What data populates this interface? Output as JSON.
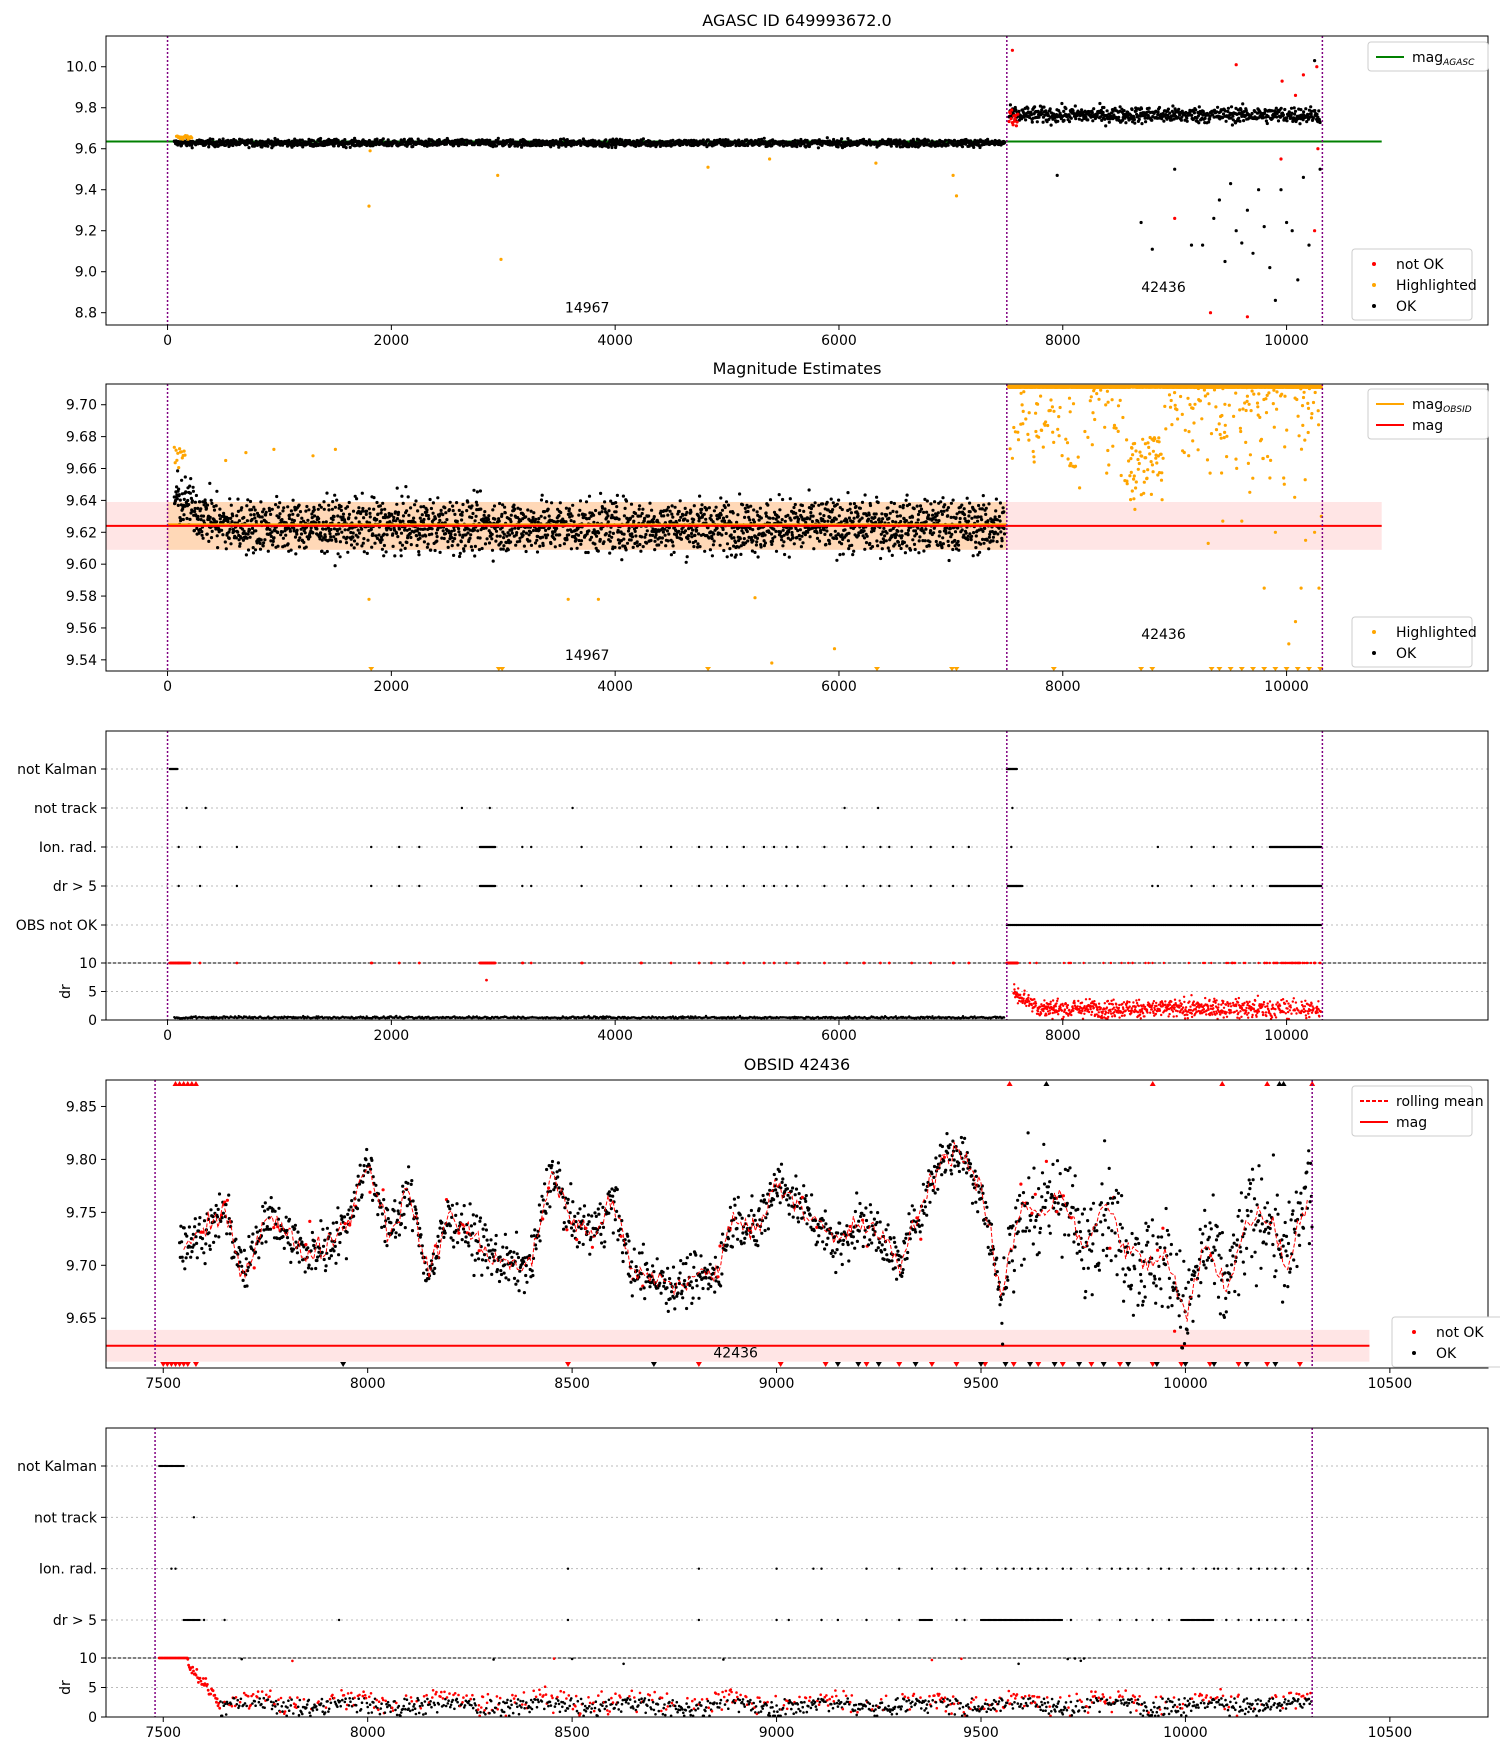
{
  "chart_data": [
    {
      "type": "scatter",
      "title": "AGASC ID 649993672.0",
      "xlim": [
        -550,
        11800
      ],
      "ylim": [
        8.74,
        10.15
      ],
      "x_ticks": [
        0,
        2000,
        4000,
        6000,
        8000,
        10000
      ],
      "y_ticks": [
        8.8,
        9.0,
        9.2,
        9.4,
        9.6,
        9.8,
        10.0
      ],
      "obsid_boundaries": [
        0,
        7500,
        10320
      ],
      "obsid_labels": [
        {
          "text": "14967",
          "x": 3750,
          "y": 8.8
        },
        {
          "text": "42436",
          "x": 8900,
          "y": 8.9
        }
      ],
      "lines": [
        {
          "name": "mag$_{AGASC}$",
          "legend": "mag",
          "legend_sub": "AGASC",
          "color": "#008000",
          "y": 9.635,
          "x": [
            -550,
            10850
          ]
        }
      ],
      "series": [
        {
          "name": "not OK",
          "color": "#ff0000"
        },
        {
          "name": "Highlighted",
          "color": "#ffa500"
        },
        {
          "name": "OK",
          "color": "#000000"
        }
      ],
      "segments": [
        {
          "series": "OK",
          "x_start": 60,
          "x_end": 7480,
          "mean": 9.628,
          "spread": 0.018
        },
        {
          "series": "OK",
          "x_start": 7520,
          "x_end": 10300,
          "mean": 9.765,
          "spread": 0.04
        }
      ],
      "outliers": {
        "Highlighted": [
          [
            1800,
            9.32
          ],
          [
            2950,
            9.47
          ],
          [
            2980,
            9.06
          ],
          [
            4830,
            9.51
          ],
          [
            5380,
            9.55
          ],
          [
            6330,
            9.53
          ],
          [
            7020,
            9.47
          ],
          [
            7050,
            9.37
          ],
          [
            1810,
            9.59
          ]
        ],
        "not OK": [
          [
            7550,
            10.08
          ],
          [
            9000,
            9.26
          ],
          [
            9320,
            8.8
          ],
          [
            9550,
            10.01
          ],
          [
            9650,
            8.78
          ],
          [
            9950,
            9.55
          ],
          [
            9960,
            9.93
          ],
          [
            10080,
            9.86
          ],
          [
            10150,
            9.96
          ],
          [
            10250,
            9.2
          ],
          [
            10270,
            10.0
          ],
          [
            10280,
            9.6
          ]
        ],
        "OK": [
          [
            7950,
            9.47
          ],
          [
            8700,
            9.24
          ],
          [
            8800,
            9.11
          ],
          [
            9000,
            9.5
          ],
          [
            9150,
            9.13
          ],
          [
            9250,
            9.13
          ],
          [
            9350,
            9.26
          ],
          [
            9400,
            9.35
          ],
          [
            9450,
            9.05
          ],
          [
            9500,
            9.43
          ],
          [
            9550,
            9.2
          ],
          [
            9600,
            9.14
          ],
          [
            9650,
            9.3
          ],
          [
            9700,
            9.09
          ],
          [
            9750,
            9.4
          ],
          [
            9800,
            9.22
          ],
          [
            9850,
            9.02
          ],
          [
            9900,
            8.86
          ],
          [
            9950,
            9.4
          ],
          [
            10000,
            9.24
          ],
          [
            10050,
            9.2
          ],
          [
            10100,
            8.96
          ],
          [
            10150,
            9.46
          ],
          [
            10200,
            9.13
          ],
          [
            10250,
            10.03
          ],
          [
            10300,
            9.5
          ]
        ]
      }
    },
    {
      "type": "scatter",
      "title": "Magnitude Estimates",
      "xlim": [
        -550,
        11800
      ],
      "ylim": [
        9.533,
        9.713
      ],
      "x_ticks": [
        0,
        2000,
        4000,
        6000,
        8000,
        10000
      ],
      "y_ticks": [
        9.54,
        9.56,
        9.58,
        9.6,
        9.62,
        9.64,
        9.66,
        9.68,
        9.7
      ],
      "obsid_boundaries": [
        0,
        7500,
        10320
      ],
      "obsid_labels": [
        {
          "text": "14967",
          "x": 3750,
          "y": 9.54
        },
        {
          "text": "42436",
          "x": 8900,
          "y": 9.553
        }
      ],
      "band": {
        "y_low": 9.609,
        "y_high": 9.639,
        "color": "#ff0000",
        "alpha": 0.1
      },
      "obsid_band": {
        "x_start": 0,
        "x_end": 7500,
        "y_low": 9.609,
        "y_high": 9.639,
        "color": "#ffa500",
        "alpha": 0.2
      },
      "lines": [
        {
          "name": "mag$_{OBSID}$",
          "legend": "mag",
          "legend_sub": "OBSID",
          "color": "#ffa500",
          "segments": [
            {
              "x_start": 0,
              "x_end": 7500,
              "y": 9.624
            },
            {
              "x_start": 7500,
              "x_end": 10320,
              "y": 9.711
            }
          ]
        },
        {
          "name": "mag",
          "legend": "mag",
          "color": "#ff0000",
          "y": 9.624,
          "x": [
            -550,
            10850
          ]
        }
      ],
      "series": [
        {
          "name": "Highlighted",
          "color": "#ffa500"
        },
        {
          "name": "OK",
          "color": "#000000"
        }
      ],
      "segments": [
        {
          "series": "OK",
          "x_start": 60,
          "x_end": 7480,
          "mean": 9.624,
          "spread": 0.014
        }
      ]
    },
    {
      "type": "scatter",
      "title": "",
      "xlim": [
        -550,
        11800
      ],
      "categories": [
        "not Kalman",
        "not track",
        "Ion. rad.",
        "dr > 5",
        "OBS not OK"
      ],
      "dr_panel": {
        "ylabel": "dr",
        "ylim": [
          0,
          10
        ],
        "y_ticks": [
          0,
          5,
          10
        ]
      },
      "x_ticks": [
        0,
        2000,
        4000,
        6000,
        8000,
        10000
      ],
      "obsid_boundaries": [
        0,
        7500,
        10320
      ],
      "flags": {
        "not Kalman": [
          [
            20,
            90
          ],
          [
            7500,
            7590
          ]
        ],
        "not track": [
          [
            170
          ],
          [
            340
          ],
          [
            2630
          ],
          [
            2880
          ],
          [
            3620
          ],
          [
            6050
          ],
          [
            6350
          ],
          [
            7550
          ]
        ],
        "Ion. rad.": [
          [
            100
          ],
          [
            290
          ],
          [
            620
          ],
          [
            1820
          ],
          [
            2070
          ],
          [
            2250
          ],
          [
            2790,
            2930
          ],
          [
            3170
          ],
          [
            3250
          ],
          [
            3700
          ],
          [
            4230
          ],
          [
            4500
          ],
          [
            4750
          ],
          [
            4860
          ],
          [
            5000
          ],
          [
            5150
          ],
          [
            5330
          ],
          [
            5420
          ],
          [
            5530
          ],
          [
            5630
          ],
          [
            5870
          ],
          [
            6070
          ],
          [
            6220
          ],
          [
            6370
          ],
          [
            6450
          ],
          [
            6650
          ],
          [
            6820
          ],
          [
            7020
          ],
          [
            7160
          ],
          [
            7540
          ],
          [
            8850
          ],
          [
            9150
          ],
          [
            9350
          ],
          [
            9500
          ],
          [
            9700
          ],
          [
            9850,
            10310
          ]
        ],
        "dr > 5": [
          [
            100
          ],
          [
            290
          ],
          [
            620
          ],
          [
            1820
          ],
          [
            2070
          ],
          [
            2250
          ],
          [
            2790,
            2930
          ],
          [
            3170
          ],
          [
            3250
          ],
          [
            3700
          ],
          [
            4230
          ],
          [
            4500
          ],
          [
            4750
          ],
          [
            4860
          ],
          [
            5000
          ],
          [
            5150
          ],
          [
            5330
          ],
          [
            5420
          ],
          [
            5530
          ],
          [
            5630
          ],
          [
            5870
          ],
          [
            6070
          ],
          [
            6220
          ],
          [
            6370
          ],
          [
            6450
          ],
          [
            6650
          ],
          [
            6820
          ],
          [
            7020
          ],
          [
            7160
          ],
          [
            7510,
            7640
          ],
          [
            8800
          ],
          [
            8850
          ],
          [
            9150
          ],
          [
            9350
          ],
          [
            9500
          ],
          [
            9600
          ],
          [
            9700
          ],
          [
            9850,
            10310
          ]
        ],
        "OBS not OK": [
          [
            7500,
            10310
          ]
        ]
      }
    },
    {
      "type": "scatter",
      "title": "OBSID 42436",
      "xlim": [
        7360,
        10740
      ],
      "ylim": [
        9.603,
        9.875
      ],
      "x_ticks": [
        7500,
        8000,
        8500,
        9000,
        9500,
        10000,
        10500
      ],
      "y_ticks": [
        9.65,
        9.7,
        9.75,
        9.8,
        9.85
      ],
      "obsid_boundaries": [
        7480,
        10310
      ],
      "obsid_labels": [
        {
          "text": "42436",
          "x": 8900,
          "y": 9.613
        }
      ],
      "band": {
        "y_low": 9.609,
        "y_high": 9.639,
        "color": "#ff0000",
        "alpha": 0.1
      },
      "lines": [
        {
          "name": "rolling mean",
          "color": "#ff0000",
          "dashed": true
        },
        {
          "name": "mag",
          "color": "#ff0000",
          "y": 9.624,
          "x": [
            7360,
            10450
          ]
        }
      ],
      "series": [
        {
          "name": "not OK",
          "color": "#ff0000"
        },
        {
          "name": "OK",
          "color": "#000000"
        }
      ],
      "x": [
        7550,
        7600,
        7650,
        7700,
        7750,
        7800,
        7850,
        7900,
        7950,
        8000,
        8050,
        8100,
        8150,
        8200,
        8250,
        8300,
        8350,
        8400,
        8450,
        8500,
        8550,
        8600,
        8650,
        8700,
        8750,
        8800,
        8850,
        8900,
        8950,
        9000,
        9050,
        9100,
        9150,
        9200,
        9250,
        9300,
        9350,
        9400,
        9450,
        9500,
        9550,
        9600,
        9650,
        9700,
        9750,
        9800,
        9850,
        9900,
        9950,
        10000,
        10050,
        10100,
        10150,
        10200,
        10250,
        10300
      ],
      "rolling_mean": [
        9.72,
        9.73,
        9.75,
        9.69,
        9.75,
        9.73,
        9.71,
        9.72,
        9.74,
        9.8,
        9.73,
        9.77,
        9.69,
        9.75,
        9.73,
        9.71,
        9.7,
        9.7,
        9.79,
        9.74,
        9.73,
        9.76,
        9.69,
        9.69,
        9.68,
        9.69,
        9.69,
        9.75,
        9.73,
        9.78,
        9.76,
        9.74,
        9.72,
        9.74,
        9.73,
        9.7,
        9.75,
        9.8,
        9.81,
        9.77,
        9.67,
        9.76,
        9.75,
        9.77,
        9.71,
        9.76,
        9.72,
        9.7,
        9.71,
        9.65,
        9.72,
        9.68,
        9.74,
        9.75,
        9.7,
        9.77
      ],
      "markers": {
        "top_not_ok": [
          7530,
          7540,
          7550,
          7560,
          7570,
          7580,
          9570,
          9920,
          10090,
          10200,
          10310
        ],
        "top_ok": [
          9660,
          10230,
          10240
        ],
        "bottom_not_ok": [
          7500,
          7510,
          7520,
          7530,
          7540,
          7550,
          7560,
          7580,
          8490,
          8810,
          9010,
          9120,
          9220,
          9300,
          9380,
          9440,
          9510,
          9580,
          9640,
          9700,
          9770,
          9840,
          9920,
          9990,
          10060,
          10130,
          10200,
          10280
        ],
        "bottom_ok": [
          7940,
          8700,
          9150,
          9200,
          9250,
          9340,
          9500,
          9560,
          9620,
          9680,
          9740,
          9800,
          9860,
          9930,
          10000,
          10070,
          10150,
          10220
        ]
      }
    },
    {
      "type": "scatter",
      "title": "",
      "xlim": [
        7360,
        10740
      ],
      "categories": [
        "not Kalman",
        "not track",
        "Ion. rad.",
        "dr > 5"
      ],
      "dr_panel": {
        "ylabel": "dr",
        "ylim": [
          0,
          10
        ],
        "y_ticks": [
          0,
          5,
          10
        ]
      },
      "x_ticks": [
        7500,
        8000,
        8500,
        9000,
        9500,
        10000,
        10500
      ],
      "obsid_boundaries": [
        7480,
        10310
      ],
      "flags": {
        "not Kalman": [
          [
            7490,
            7550
          ]
        ],
        "not track": [
          [
            7575
          ]
        ],
        "Ion. rad.": [
          [
            7520
          ],
          [
            7530
          ],
          [
            8490
          ],
          [
            8810
          ],
          [
            9000
          ],
          [
            9090
          ],
          [
            9110
          ],
          [
            9220
          ],
          [
            9300
          ],
          [
            9380
          ],
          [
            9440
          ],
          [
            9460
          ],
          [
            9500
          ],
          [
            9540
          ],
          [
            9560
          ],
          [
            9580
          ],
          [
            9600
          ],
          [
            9620
          ],
          [
            9640
          ],
          [
            9660
          ],
          [
            9700
          ],
          [
            9720
          ],
          [
            9760
          ],
          [
            9790
          ],
          [
            9820
          ],
          [
            9840
          ],
          [
            9860
          ],
          [
            9880
          ],
          [
            9910
          ],
          [
            9940
          ],
          [
            9960
          ],
          [
            9990
          ],
          [
            10020
          ],
          [
            10050
          ],
          [
            10070
          ],
          [
            10080
          ],
          [
            10100
          ],
          [
            10130
          ],
          [
            10160
          ],
          [
            10180
          ],
          [
            10200
          ],
          [
            10220
          ],
          [
            10240
          ],
          [
            10270
          ],
          [
            10300
          ]
        ],
        "dr > 5": [
          [
            7550,
            7590
          ],
          [
            7600
          ],
          [
            7650
          ],
          [
            7930
          ],
          [
            8490
          ],
          [
            8810
          ],
          [
            9000
          ],
          [
            9030
          ],
          [
            9110
          ],
          [
            9150
          ],
          [
            9220
          ],
          [
            9300
          ],
          [
            9350,
            9380
          ],
          [
            9440
          ],
          [
            9460
          ],
          [
            9500,
            9700
          ],
          [
            9720
          ],
          [
            9790
          ],
          [
            9840
          ],
          [
            9880
          ],
          [
            9920
          ],
          [
            9960
          ],
          [
            9990,
            10070
          ],
          [
            10100
          ],
          [
            10130
          ],
          [
            10160
          ],
          [
            10180
          ],
          [
            10200
          ],
          [
            10220
          ],
          [
            10240
          ],
          [
            10270
          ],
          [
            10300
          ]
        ]
      }
    }
  ]
}
